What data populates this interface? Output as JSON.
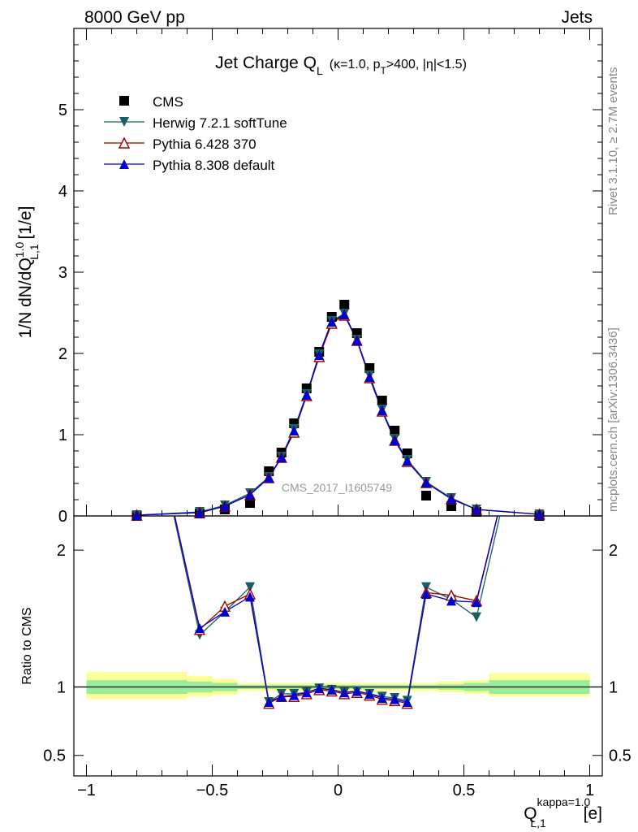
{
  "header": {
    "left": "8000 GeV pp",
    "right": "Jets"
  },
  "plot_title": {
    "main": "Jet Charge Q",
    "main_sub": "L",
    "cond_prefix": "(κ=1.0, p",
    "cond_sub": "T",
    "cond_suffix": ">400, |η|<1.5)"
  },
  "side_labels": {
    "rivet": "Rivet 3.1.10, ≥ 2.7M events",
    "mcplots": "mcplots.cern.ch [arXiv:1306.3436]"
  },
  "watermark": "CMS_2017_I1605749",
  "y_axis_top": {
    "prefix": "1/N dN/dQ",
    "sup": "1.0",
    "sub": "L,1",
    "suffix": " [1/e]"
  },
  "y_axis_bottom": "Ratio to CMS",
  "x_axis": {
    "base": "Q",
    "sup": "kappa=1.0",
    "sub": "L,1",
    "unit": " [e]"
  },
  "legend": [
    {
      "name": "CMS",
      "marker": "square",
      "color": "#000000"
    },
    {
      "name": "Herwig 7.2.1 softTune",
      "marker": "triangle-down",
      "color": "#1a5f5f"
    },
    {
      "name": "Pythia 6.428 370",
      "marker": "triangle-open",
      "color": "#a00000"
    },
    {
      "name": "Pythia 8.308 default",
      "marker": "triangle-up",
      "color": "#0000cc"
    }
  ],
  "chart_data": [
    {
      "type": "scatter",
      "panel": "main",
      "xlim": [
        -1.05,
        1.05
      ],
      "ylim": [
        0,
        6
      ],
      "yticks": [
        0,
        1,
        2,
        3,
        4,
        5
      ],
      "legend_position": "top-left",
      "series": [
        {
          "name": "CMS",
          "x": [
            -0.8,
            -0.55,
            -0.45,
            -0.35,
            -0.275,
            -0.225,
            -0.175,
            -0.125,
            -0.075,
            -0.025,
            0.025,
            0.075,
            0.125,
            0.175,
            0.225,
            0.275,
            0.35,
            0.45,
            0.55,
            0.8
          ],
          "y": [
            0.0,
            0.03,
            0.08,
            0.16,
            0.55,
            0.78,
            1.14,
            1.57,
            2.02,
            2.45,
            2.6,
            2.25,
            1.82,
            1.42,
            1.05,
            0.77,
            0.25,
            0.12,
            0.05,
            0.0
          ]
        },
        {
          "name": "Herwig 7.2.1 softTune",
          "x": [
            -0.8,
            -0.55,
            -0.45,
            -0.35,
            -0.275,
            -0.225,
            -0.175,
            -0.125,
            -0.075,
            -0.025,
            0.025,
            0.075,
            0.125,
            0.175,
            0.225,
            0.275,
            0.35,
            0.45,
            0.55,
            0.8
          ],
          "y": [
            0.01,
            0.05,
            0.13,
            0.28,
            0.48,
            0.73,
            1.07,
            1.5,
            1.99,
            2.4,
            2.49,
            2.17,
            1.73,
            1.31,
            0.95,
            0.69,
            0.42,
            0.22,
            0.08,
            0.02
          ]
        },
        {
          "name": "Pythia 6.428 370",
          "x": [
            -0.8,
            -0.55,
            -0.45,
            -0.35,
            -0.275,
            -0.225,
            -0.175,
            -0.125,
            -0.075,
            -0.025,
            0.025,
            0.075,
            0.125,
            0.175,
            0.225,
            0.275,
            0.35,
            0.45,
            0.55,
            0.8
          ],
          "y": [
            0.01,
            0.04,
            0.12,
            0.26,
            0.47,
            0.72,
            1.03,
            1.48,
            1.96,
            2.37,
            2.47,
            2.16,
            1.7,
            1.29,
            0.93,
            0.67,
            0.41,
            0.21,
            0.08,
            0.02
          ]
        },
        {
          "name": "Pythia 8.308 default",
          "x": [
            -0.8,
            -0.55,
            -0.45,
            -0.35,
            -0.275,
            -0.225,
            -0.175,
            -0.125,
            -0.075,
            -0.025,
            0.025,
            0.075,
            0.125,
            0.175,
            0.225,
            0.275,
            0.35,
            0.45,
            0.55,
            0.8
          ],
          "y": [
            0.01,
            0.04,
            0.12,
            0.26,
            0.47,
            0.72,
            1.05,
            1.49,
            1.98,
            2.39,
            2.48,
            2.16,
            1.71,
            1.3,
            0.93,
            0.68,
            0.41,
            0.21,
            0.08,
            0.02
          ]
        }
      ]
    },
    {
      "type": "line",
      "panel": "ratio",
      "xlim": [
        -1.05,
        1.05
      ],
      "ylim": [
        0.35,
        2.25
      ],
      "yticks": [
        0.5,
        1,
        2
      ],
      "xticks": [
        -1,
        -0.5,
        0,
        0.5,
        1
      ],
      "xtick_labels": [
        "−1",
        "−0.5",
        "0",
        "0.5",
        "1"
      ],
      "bands": [
        {
          "x0": -1.0,
          "x1": -0.6,
          "inner": [
            0.95,
            1.05
          ],
          "outer": [
            0.91,
            1.11
          ]
        },
        {
          "x0": -0.6,
          "x1": -0.5,
          "inner": [
            0.96,
            1.04
          ],
          "outer": [
            0.93,
            1.08
          ]
        },
        {
          "x0": -0.5,
          "x1": -0.4,
          "inner": [
            0.97,
            1.03
          ],
          "outer": [
            0.94,
            1.06
          ]
        },
        {
          "x0": -0.4,
          "x1": 0.4,
          "inner": [
            0.985,
            1.015
          ],
          "outer": [
            0.97,
            1.03
          ]
        },
        {
          "x0": 0.4,
          "x1": 0.5,
          "inner": [
            0.98,
            1.02
          ],
          "outer": [
            0.96,
            1.04
          ]
        },
        {
          "x0": 0.5,
          "x1": 0.6,
          "inner": [
            0.97,
            1.03
          ],
          "outer": [
            0.95,
            1.05
          ]
        },
        {
          "x0": 0.6,
          "x1": 1.0,
          "inner": [
            0.95,
            1.05
          ],
          "outer": [
            0.93,
            1.1
          ]
        }
      ],
      "series": [
        {
          "name": "Herwig 7.2.1 softTune",
          "x": [
            -0.8,
            -0.55,
            -0.45,
            -0.35,
            -0.275,
            -0.225,
            -0.175,
            -0.125,
            -0.075,
            -0.025,
            0.025,
            0.075,
            0.125,
            0.175,
            0.225,
            0.275,
            0.35,
            0.45,
            0.55,
            0.8
          ],
          "y": [
            3.5,
            1.38,
            1.55,
            1.73,
            0.89,
            0.95,
            0.95,
            0.96,
            0.99,
            0.98,
            0.96,
            0.97,
            0.95,
            0.93,
            0.92,
            0.9,
            1.73,
            1.64,
            1.51,
            3.5
          ]
        },
        {
          "name": "Pythia 6.428 370",
          "x": [
            -0.8,
            -0.55,
            -0.45,
            -0.35,
            -0.275,
            -0.225,
            -0.175,
            -0.125,
            -0.075,
            -0.025,
            0.025,
            0.075,
            0.125,
            0.175,
            0.225,
            0.275,
            0.35,
            0.45,
            0.55,
            0.8
          ],
          "y": [
            3.5,
            1.42,
            1.59,
            1.68,
            0.88,
            0.93,
            0.93,
            0.95,
            0.98,
            0.97,
            0.95,
            0.96,
            0.94,
            0.91,
            0.9,
            0.88,
            1.69,
            1.67,
            1.63,
            3.5
          ]
        },
        {
          "name": "Pythia 8.308 default",
          "x": [
            -0.8,
            -0.55,
            -0.45,
            -0.35,
            -0.275,
            -0.225,
            -0.175,
            -0.125,
            -0.075,
            -0.025,
            0.025,
            0.075,
            0.125,
            0.175,
            0.225,
            0.275,
            0.35,
            0.45,
            0.55,
            0.8
          ],
          "y": [
            3.5,
            1.43,
            1.55,
            1.66,
            0.89,
            0.93,
            0.94,
            0.96,
            0.99,
            0.98,
            0.96,
            0.97,
            0.95,
            0.92,
            0.91,
            0.89,
            1.68,
            1.63,
            1.62,
            3.5
          ]
        }
      ]
    }
  ]
}
